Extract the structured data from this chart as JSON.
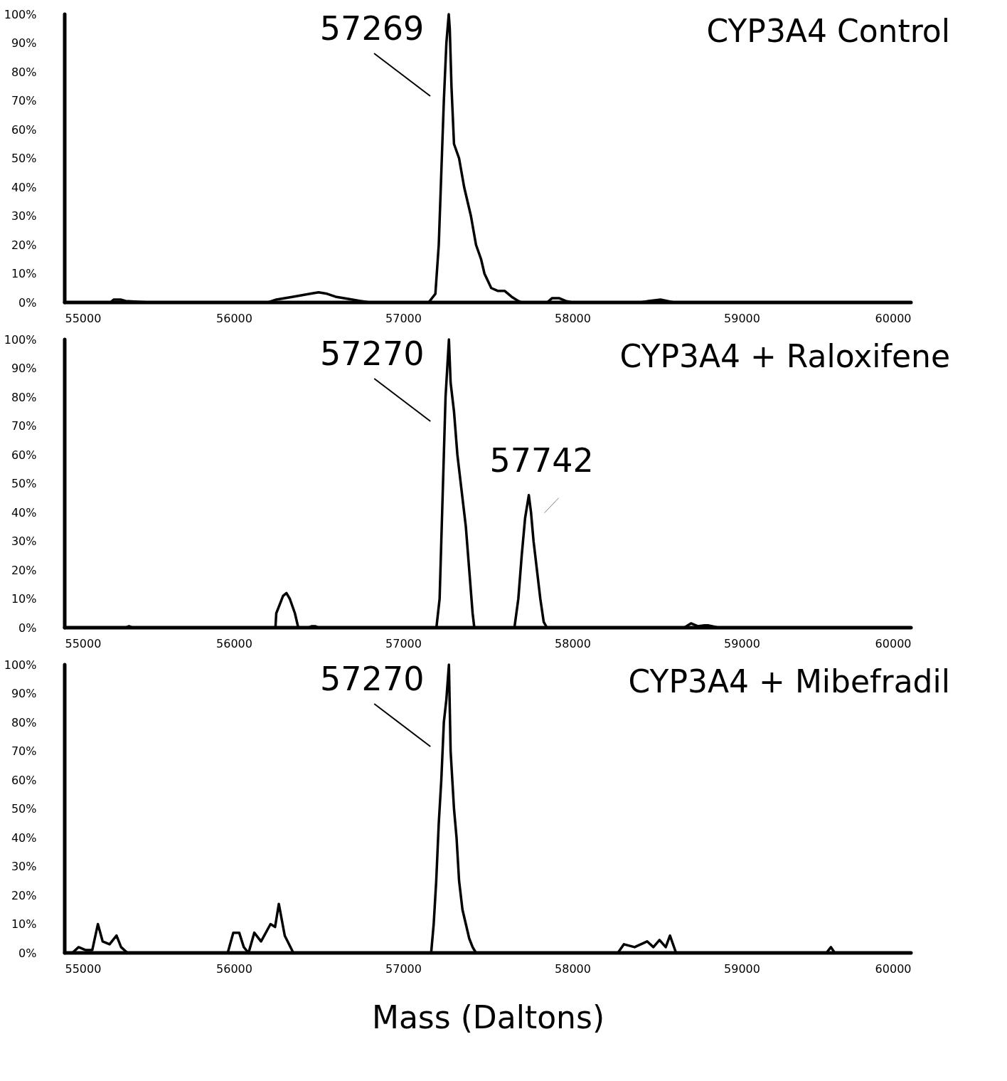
{
  "chart_data": [
    {
      "type": "line",
      "title": "CYP3A4 Control",
      "xlim": [
        55000,
        60000
      ],
      "xticks": [
        55000,
        56000,
        57000,
        58000,
        59000,
        60000
      ],
      "ylim": [
        0,
        100
      ],
      "yticks": [
        {
          "value": 0,
          "label": "0%"
        },
        {
          "value": 10,
          "label": "10%"
        },
        {
          "value": 20,
          "label": "20%"
        },
        {
          "value": 30,
          "label": "30%"
        },
        {
          "value": 40,
          "label": "40%"
        },
        {
          "value": 50,
          "label": "50%"
        },
        {
          "value": 60,
          "label": "60%"
        },
        {
          "value": 70,
          "label": "70%"
        },
        {
          "value": 80,
          "label": "80%"
        },
        {
          "value": 90,
          "label": "90%"
        },
        {
          "value": 100,
          "label": "100%"
        }
      ],
      "grid": false,
      "series": [
        {
          "color": "#000000",
          "x": [
            55000,
            55270,
            55290,
            55330,
            55360,
            55500,
            56200,
            56250,
            56350,
            56450,
            56500,
            56550,
            56600,
            56700,
            56800,
            57150,
            57190,
            57210,
            57225,
            57240,
            57255,
            57269,
            57275,
            57285,
            57300,
            57330,
            57360,
            57400,
            57430,
            57460,
            57480,
            57520,
            57560,
            57600,
            57640,
            57680,
            57700,
            57850,
            57880,
            57920,
            57960,
            58000,
            58400,
            58450,
            58520,
            58560,
            58600,
            60000
          ],
          "values": [
            0,
            0,
            1,
            1,
            0.5,
            0,
            0,
            1,
            2,
            3,
            3.5,
            3,
            2,
            1,
            0,
            0,
            3,
            20,
            45,
            70,
            90,
            100,
            95,
            75,
            55,
            50,
            40,
            30,
            20,
            15,
            10,
            5,
            4,
            4,
            2,
            0.5,
            0,
            0,
            1.5,
            1.5,
            0.5,
            0,
            0,
            0.5,
            1,
            0.5,
            0,
            0
          ]
        }
      ],
      "annotations": [
        {
          "text": "57269",
          "x": 57269,
          "y": 100
        }
      ]
    },
    {
      "type": "line",
      "title": "CYP3A4 + Raloxifene",
      "xlim": [
        55000,
        60000
      ],
      "xticks": [
        55000,
        56000,
        57000,
        58000,
        59000,
        60000
      ],
      "ylim": [
        0,
        100
      ],
      "yticks": [
        {
          "value": 0,
          "label": "0%"
        },
        {
          "value": 10,
          "label": "10%"
        },
        {
          "value": 20,
          "label": "20%"
        },
        {
          "value": 30,
          "label": "30%"
        },
        {
          "value": 40,
          "label": "40%"
        },
        {
          "value": 50,
          "label": "50%"
        },
        {
          "value": 60,
          "label": "60%"
        },
        {
          "value": 70,
          "label": "70%"
        },
        {
          "value": 80,
          "label": "80%"
        },
        {
          "value": 90,
          "label": "90%"
        },
        {
          "value": 100,
          "label": "100%"
        }
      ],
      "grid": false,
      "series": [
        {
          "color": "#000000",
          "x": [
            55000,
            55360,
            55380,
            55400,
            56245,
            56250,
            56270,
            56290,
            56310,
            56330,
            56360,
            56380,
            56440,
            56460,
            56480,
            56500,
            57196,
            57215,
            57225,
            57240,
            57250,
            57260,
            57270,
            57280,
            57300,
            57320,
            57340,
            57370,
            57390,
            57410,
            57420,
            57657,
            57680,
            57700,
            57720,
            57742,
            57755,
            57770,
            57790,
            57810,
            57830,
            57849,
            58660,
            58700,
            58740,
            58780,
            58800,
            58840,
            58860,
            60000
          ],
          "values": [
            0,
            0,
            0.5,
            0,
            0,
            5,
            8,
            11,
            12,
            10,
            5,
            0,
            0,
            0.5,
            0.5,
            0,
            0,
            10,
            30,
            60,
            80,
            90,
            100,
            85,
            75,
            60,
            50,
            35,
            20,
            5,
            0,
            0,
            10,
            25,
            38,
            46,
            40,
            30,
            20,
            10,
            2,
            0,
            0,
            1.5,
            0.5,
            0.8,
            0.8,
            0.3,
            0,
            0
          ]
        }
      ],
      "annotations": [
        {
          "text": "57270",
          "x": 57270,
          "y": 100
        },
        {
          "text": "57742",
          "x": 57742,
          "y": 46
        }
      ]
    },
    {
      "type": "line",
      "title": "CYP3A4 + Mibefradil",
      "xlabel": "Mass (Daltons)",
      "xlim": [
        55000,
        60000
      ],
      "xticks": [
        55000,
        56000,
        57000,
        58000,
        59000,
        60000
      ],
      "ylim": [
        0,
        100
      ],
      "yticks": [
        {
          "value": 0,
          "label": "0%"
        },
        {
          "value": 10,
          "label": "10%"
        },
        {
          "value": 20,
          "label": "20%"
        },
        {
          "value": 30,
          "label": "30%"
        },
        {
          "value": 40,
          "label": "40%"
        },
        {
          "value": 50,
          "label": "50%"
        },
        {
          "value": 60,
          "label": "60%"
        },
        {
          "value": 70,
          "label": "70%"
        },
        {
          "value": 80,
          "label": "80%"
        },
        {
          "value": 90,
          "label": "90%"
        },
        {
          "value": 100,
          "label": "100%"
        }
      ],
      "grid": false,
      "series": [
        {
          "color": "#000000",
          "x": [
            55000,
            55045,
            55082,
            55122,
            55163,
            55196,
            55224,
            55265,
            55306,
            55333,
            55371,
            55963,
            55996,
            56031,
            56058,
            56086,
            56120,
            56160,
            56216,
            56243,
            56265,
            56300,
            56351,
            57165,
            57180,
            57195,
            57210,
            57225,
            57240,
            57255,
            57270,
            57280,
            57290,
            57300,
            57315,
            57330,
            57350,
            57370,
            57390,
            57410,
            57430,
            58268,
            58304,
            58367,
            58441,
            58478,
            58514,
            58551,
            58576,
            58612,
            59500,
            59527,
            59550,
            60000
          ],
          "values": [
            0,
            0,
            2,
            1,
            1,
            10,
            4,
            3,
            6,
            2,
            0,
            0,
            7,
            7,
            2,
            0,
            7,
            4,
            10,
            9,
            17,
            6,
            0,
            0,
            10,
            25,
            45,
            60,
            80,
            88,
            100,
            70,
            60,
            50,
            40,
            25,
            15,
            10,
            5,
            2,
            0,
            0,
            3,
            2,
            4,
            2,
            4.5,
            2,
            6,
            0,
            0,
            2,
            0,
            0
          ]
        }
      ],
      "annotations": [
        {
          "text": "57270",
          "x": 57270,
          "y": 100
        }
      ]
    }
  ]
}
